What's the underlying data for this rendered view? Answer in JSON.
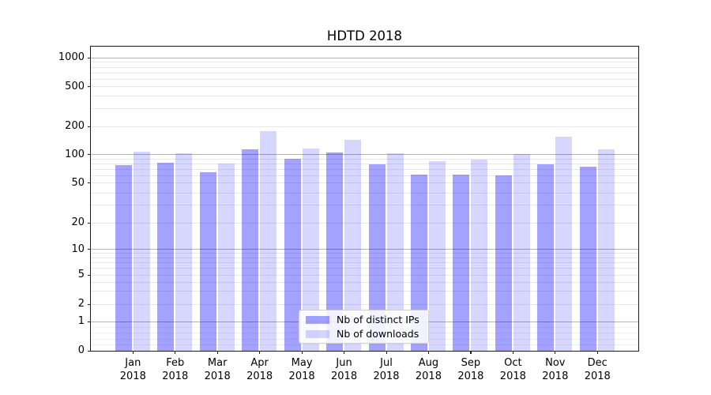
{
  "chart_data": {
    "type": "bar",
    "title": "HDTD 2018",
    "xlabel": "",
    "ylabel": "",
    "yscale": "symlog",
    "ylim": [
      0,
      1200
    ],
    "grid": "horizontal",
    "legend_position": "lower center",
    "categories": [
      "Jan 2018",
      "Feb 2018",
      "Mar 2018",
      "Apr 2018",
      "May 2018",
      "Jun 2018",
      "Jul 2018",
      "Aug 2018",
      "Sep 2018",
      "Oct 2018",
      "Nov 2018",
      "Dec 2018"
    ],
    "yticks": [
      0,
      1,
      2,
      5,
      10,
      20,
      50,
      100,
      200,
      500,
      1000
    ],
    "series": [
      {
        "name": "Nb of distinct IPs",
        "color": "#0000ff5c",
        "values": [
          77,
          82,
          65,
          115,
          91,
          105,
          79,
          62,
          62,
          60,
          79,
          74
        ]
      },
      {
        "name": "Nb of downloads",
        "color": "#0000ff29",
        "values": [
          107,
          103,
          80,
          177,
          117,
          145,
          103,
          86,
          88,
          102,
          156,
          114
        ]
      }
    ]
  },
  "colors": {
    "grid_major": "#b3b3b3",
    "grid_minor": "#e8e8e8",
    "grid_sub1": "#f0f0f0",
    "spine": "#1a1a1a"
  }
}
